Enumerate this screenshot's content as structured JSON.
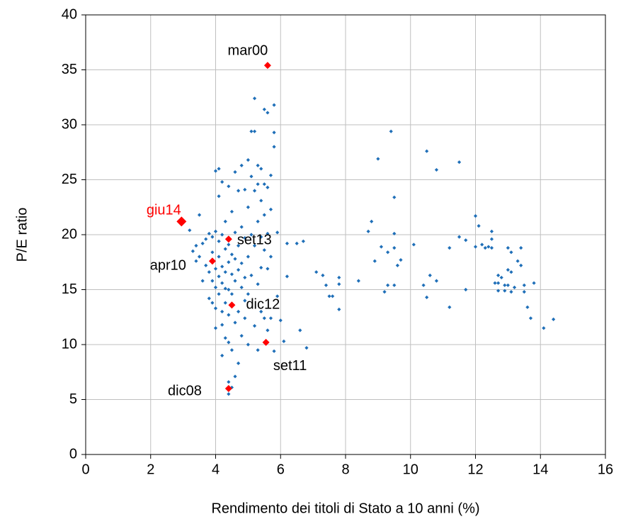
{
  "chart_data": {
    "type": "scatter",
    "xlabel": "Rendimento dei titoli di Stato a 10 anni (%)",
    "ylabel": "P/E ratio",
    "xlim": [
      0,
      16
    ],
    "xticks": [
      0,
      2,
      4,
      6,
      8,
      10,
      12,
      14,
      16
    ],
    "ylim": [
      0,
      40
    ],
    "yticks": [
      0,
      5,
      10,
      15,
      20,
      25,
      30,
      35,
      40
    ],
    "grid": true,
    "series": [
      {
        "color": "#1f6fb8",
        "x": [
          7.1,
          7.3,
          7.5,
          7.6,
          7.4,
          7.8,
          7.8,
          7.8,
          8.4,
          8.7,
          8.8,
          8.9,
          9.0,
          9.1,
          9.2,
          9.3,
          9.3,
          9.4,
          9.5,
          9.5,
          9.5,
          9.6,
          9.7,
          9.5,
          10.1,
          10.4,
          10.5,
          10.5,
          10.6,
          10.8,
          10.8,
          11.2,
          11.2,
          11.5,
          11.5,
          11.7,
          11.7,
          12.0,
          12.0,
          12.1,
          12.2,
          12.3,
          12.4,
          12.5,
          12.5,
          12.5,
          12.7,
          12.7,
          12.7,
          12.8,
          12.9,
          12.9,
          13.0,
          13.0,
          13.0,
          13.1,
          13.1,
          13.2,
          13.3,
          13.4,
          13.4,
          13.5,
          13.5,
          13.6,
          13.7,
          13.8,
          14.1,
          14.4,
          12.6,
          13.1,
          3.2,
          3.3,
          3.4,
          3.5,
          3.5,
          3.6,
          3.7,
          3.7,
          3.8,
          3.8,
          3.8,
          3.9,
          3.9,
          3.9,
          3.9,
          4.0,
          4.0,
          4.0,
          4.0,
          4.0,
          4.1,
          4.1,
          4.1,
          4.1,
          4.1,
          4.1,
          4.2,
          4.2,
          4.2,
          4.2,
          4.2,
          4.2,
          4.3,
          4.3,
          4.3,
          4.3,
          4.3,
          4.3,
          4.4,
          4.4,
          4.4,
          4.4,
          4.4,
          4.4,
          4.4,
          4.5,
          4.5,
          4.5,
          4.5,
          4.5,
          4.4,
          4.5,
          4.6,
          4.6,
          4.6,
          4.6,
          4.6,
          4.7,
          4.7,
          4.7,
          4.7,
          4.7,
          4.8,
          4.8,
          4.8,
          4.8,
          4.8,
          4.9,
          4.9,
          4.9,
          4.9,
          5.0,
          5.0,
          5.0,
          5.0,
          5.0,
          5.1,
          5.1,
          5.1,
          5.1,
          5.2,
          5.2,
          5.2,
          5.2,
          5.2,
          5.3,
          5.3,
          5.3,
          5.3,
          5.3,
          5.4,
          5.4,
          5.4,
          5.4,
          5.4,
          5.5,
          5.5,
          5.5,
          5.5,
          5.5,
          5.6,
          5.6,
          5.6,
          5.6,
          5.6,
          5.7,
          5.7,
          5.7,
          5.7,
          5.8,
          5.8,
          5.8,
          5.8,
          5.9,
          5.9,
          6.0,
          6.1,
          6.2,
          6.2,
          6.5,
          6.6,
          6.7,
          6.8,
          4.0,
          4.2,
          4.6,
          4.9,
          3.4,
          3.6
        ],
        "y": [
          16.6,
          16.3,
          14.4,
          14.4,
          15.4,
          16.1,
          15.5,
          13.2,
          15.8,
          20.3,
          21.2,
          17.6,
          26.9,
          18.9,
          14.8,
          18.4,
          15.4,
          29.4,
          23.4,
          20.1,
          15.4,
          17.2,
          17.7,
          18.8,
          19.1,
          15.4,
          14.3,
          27.6,
          16.3,
          25.9,
          15.8,
          18.8,
          13.4,
          26.6,
          19.8,
          19.5,
          15.0,
          21.7,
          18.9,
          20.8,
          19.1,
          18.8,
          18.9,
          20.3,
          19.6,
          18.8,
          16.3,
          15.6,
          14.9,
          16.1,
          15.4,
          14.9,
          18.8,
          16.8,
          15.4,
          18.4,
          16.6,
          15.2,
          17.6,
          18.8,
          17.2,
          15.4,
          14.8,
          13.4,
          12.4,
          15.6,
          11.5,
          12.3,
          15.6,
          14.8,
          20.4,
          18.5,
          17.6,
          21.8,
          18.0,
          19.2,
          19.6,
          17.2,
          20.1,
          16.6,
          14.2,
          19.8,
          18.4,
          15.8,
          13.8,
          25.8,
          20.3,
          16.9,
          15.2,
          13.3,
          26.0,
          23.5,
          19.4,
          18.0,
          16.2,
          14.6,
          24.8,
          20.0,
          17.1,
          15.6,
          13.0,
          11.8,
          21.2,
          18.7,
          16.6,
          15.1,
          13.8,
          10.6,
          24.4,
          19.1,
          17.5,
          15.0,
          12.7,
          10.2,
          6.6,
          22.1,
          18.2,
          16.4,
          14.6,
          9.5,
          5.5,
          6.1,
          25.7,
          20.2,
          17.8,
          15.8,
          12.0,
          24.0,
          19.0,
          16.8,
          13.0,
          8.3,
          26.3,
          20.7,
          17.4,
          15.2,
          10.8,
          24.1,
          19.7,
          16.1,
          12.4,
          26.8,
          22.5,
          18.0,
          14.6,
          10.0,
          29.4,
          25.3,
          20.0,
          16.3,
          32.4,
          29.4,
          24.0,
          19.0,
          11.7,
          26.3,
          24.6,
          21.2,
          15.5,
          9.5,
          26.0,
          23.1,
          19.8,
          17.0,
          13.0,
          31.4,
          24.6,
          21.8,
          18.6,
          12.4,
          31.1,
          24.3,
          20.1,
          16.9,
          11.3,
          25.4,
          22.3,
          18.0,
          12.4,
          31.8,
          29.3,
          28.0,
          9.4,
          20.2,
          14.4,
          12.2,
          10.3,
          19.2,
          16.2,
          19.2,
          11.3,
          19.4,
          9.7,
          11.5,
          9.0,
          7.1,
          14.0,
          19.0,
          15.8
        ]
      }
    ],
    "annotations": [
      {
        "label": "mar00",
        "x": 5.6,
        "y": 35.4,
        "color": "#ff0000",
        "label_color": "#000000"
      },
      {
        "label": "giu14",
        "x": 2.95,
        "y": 21.2,
        "color": "#ff0000",
        "label_color": "#ff0000"
      },
      {
        "label": "set13",
        "x": 4.4,
        "y": 19.6,
        "color": "#ff0000",
        "label_color": "#000000"
      },
      {
        "label": "apr10",
        "x": 3.9,
        "y": 17.6,
        "color": "#ff0000",
        "label_color": "#000000"
      },
      {
        "label": "dic12",
        "x": 4.5,
        "y": 13.6,
        "color": "#ff0000",
        "label_color": "#000000"
      },
      {
        "label": "set11",
        "x": 5.55,
        "y": 10.2,
        "color": "#ff0000",
        "label_color": "#000000"
      },
      {
        "label": "dic08",
        "x": 4.4,
        "y": 6.0,
        "color": "#ff0000",
        "label_color": "#000000"
      }
    ]
  }
}
